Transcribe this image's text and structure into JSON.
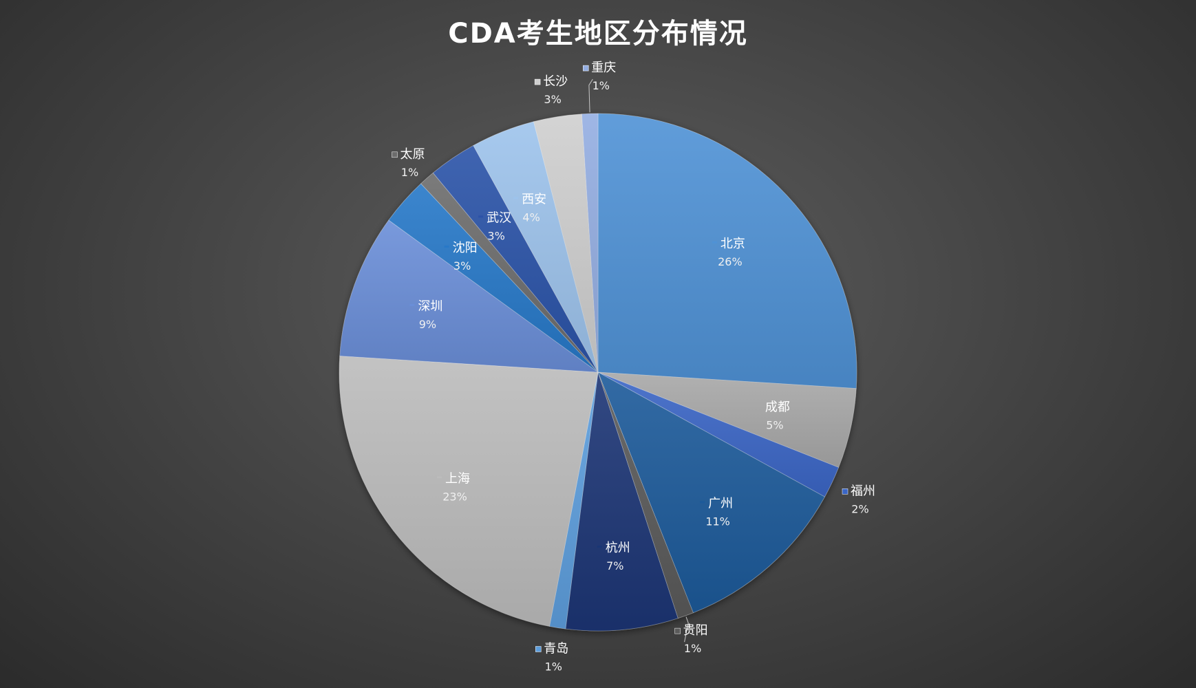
{
  "chart_data": {
    "type": "pie",
    "title": "CDA考生地区分布情况",
    "start_angle_deg": 0,
    "direction": "clockwise",
    "slices": [
      {
        "name": "北京",
        "value": 26,
        "label": "26%",
        "color": "#4f92d6"
      },
      {
        "name": "成都",
        "value": 5,
        "label": "5%",
        "color": "#a8a8a8"
      },
      {
        "name": "福州",
        "value": 2,
        "label": "2%",
        "color": "#3a66c6"
      },
      {
        "name": "广州",
        "value": 11,
        "label": "11%",
        "color": "#1d5a9a"
      },
      {
        "name": "贵阳",
        "value": 1,
        "label": "1%",
        "color": "#5a5a5a"
      },
      {
        "name": "杭州",
        "value": 7,
        "label": "7%",
        "color": "#1a3675"
      },
      {
        "name": "青岛",
        "value": 1,
        "label": "1%",
        "color": "#5d9edd"
      },
      {
        "name": "上海",
        "value": 23,
        "label": "23%",
        "color": "#bcbcbc"
      },
      {
        "name": "深圳",
        "value": 9,
        "label": "9%",
        "color": "#6a8ed8"
      },
      {
        "name": "沈阳",
        "value": 3,
        "label": "3%",
        "color": "#2878c8"
      },
      {
        "name": "太原",
        "value": 1,
        "label": "1%",
        "color": "#6c6c6c"
      },
      {
        "name": "武汉",
        "value": 3,
        "label": "3%",
        "color": "#2c52a8"
      },
      {
        "name": "西安",
        "value": 4,
        "label": "4%",
        "color": "#9dc3ec"
      },
      {
        "name": "长沙",
        "value": 3,
        "label": "3%",
        "color": "#cfcfcf"
      },
      {
        "name": "重庆",
        "value": 1,
        "label": "1%",
        "color": "#94aee2"
      }
    ]
  }
}
